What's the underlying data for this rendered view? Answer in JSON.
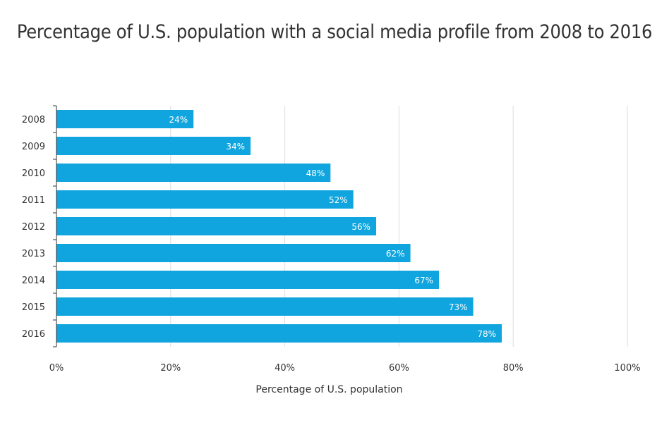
{
  "chart_data": {
    "type": "bar",
    "orientation": "horizontal",
    "title": "Percentage of U.S. population with a social media profile from 2008 to 2016",
    "categories": [
      "2008",
      "2009",
      "2010",
      "2011",
      "2012",
      "2013",
      "2014",
      "2015",
      "2016"
    ],
    "values": [
      24,
      34,
      48,
      52,
      56,
      62,
      67,
      73,
      78
    ],
    "data_labels": [
      "24%",
      "34%",
      "48%",
      "52%",
      "56%",
      "62%",
      "67%",
      "73%",
      "78%"
    ],
    "xlabel": "Percentage of U.S. population",
    "ylabel": "",
    "xlim": [
      0,
      100
    ],
    "x_ticks": [
      0,
      20,
      40,
      60,
      80,
      100
    ],
    "x_tick_labels": [
      "0%",
      "20%",
      "40%",
      "60%",
      "80%",
      "100%"
    ],
    "grid": "vertical",
    "legend": "none",
    "colors": {
      "bar": "#10a5de",
      "grid": "#dddddd",
      "axis": "#333333",
      "text": "#333333"
    }
  }
}
